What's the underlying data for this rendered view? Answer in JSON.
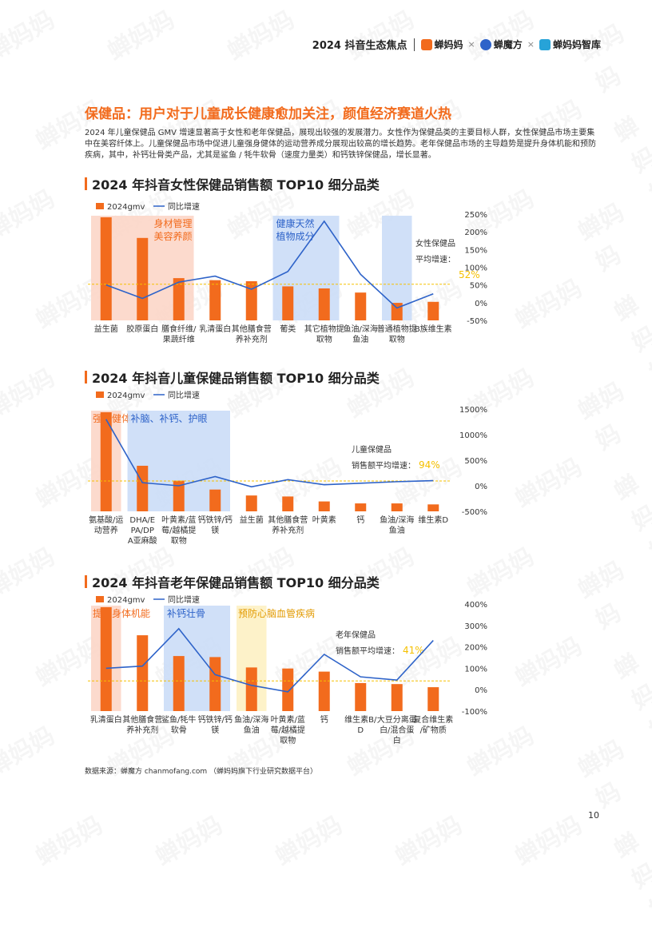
{
  "header": {
    "report_title": "2024 抖音生态焦点",
    "brand1": "蝉妈妈",
    "brand2": "蝉魔方",
    "brand3": "蝉妈妈智库",
    "times": "×"
  },
  "section_title": "保健品：用户对于儿童成长健康愈加关注，颜值经济赛道火热",
  "intro": "2024 年儿童保健品 GMV 增速显著高于女性和老年保健品，展现出较强的发展潜力。女性作为保健品类的主要目标人群，女性保健品市场主要集中在美容纤体上。儿童保健品市场中促进儿童强身健体的运动营养成分展现出较高的增长趋势。老年保健品市场的主导趋势是提升身体机能和预防疾病，其中，补钙壮骨类产品，尤其是鲨鱼 / 牦牛软骨（速度力量类）和钙铁锌保健品，增长显著。",
  "watermark": "蝉妈妈",
  "source": "数据来源：蝉魔方 chanmofang.com （蝉妈妈旗下行业研究数据平台）",
  "page_number": "10",
  "colors": {
    "bar": "#f26b1d",
    "line": "#2e63c9",
    "accent": "#f26b1d",
    "avg": "#f5c000"
  },
  "chart_data": [
    {
      "type": "bar",
      "title": "2024 年抖音女性保健品销售额 TOP10 细分品类",
      "legend": [
        "2024gmv",
        "同比增速"
      ],
      "categories": [
        "益生菌",
        "胶原蛋白",
        "膳食纤维/果蔬纤维",
        "乳清蛋白",
        "其他膳食营养补充剂",
        "葡类",
        "其它植物提取物",
        "鱼油/深海鱼油",
        "普通植物提取物",
        "B族维生素"
      ],
      "series": [
        {
          "name": "2024gmv",
          "values": [
            100,
            80,
            41,
            39,
            38,
            33,
            31,
            27,
            17,
            18
          ]
        },
        {
          "name": "同比增速",
          "values": [
            50,
            12,
            58,
            75,
            38,
            88,
            230,
            80,
            -15,
            25
          ]
        }
      ],
      "gmv_max": 100,
      "y2ticks": [
        "250%",
        "200%",
        "150%",
        "100%",
        "50%",
        "0%",
        "-50%"
      ],
      "y2lim": [
        -50,
        250
      ],
      "avg_value": 52,
      "avg_label": "女性保健品平均增速：",
      "avg_label_lines": [
        "女性保健品",
        "平均增速："
      ],
      "avg_text": "52%",
      "annotations": [
        {
          "text": [
            "身材管理",
            "美容养颜"
          ],
          "range": [
            0,
            2
          ],
          "color": "red"
        },
        {
          "text": [
            "健康天然",
            "植物成分"
          ],
          "range": [
            5,
            6
          ],
          "color": "blue"
        },
        {
          "text": [],
          "range": [
            8,
            8
          ],
          "color": "blue"
        }
      ]
    },
    {
      "type": "bar",
      "title": "2024 年抖音儿童保健品销售额 TOP10 细分品类",
      "legend": [
        "2024gmv",
        "同比增速"
      ],
      "categories": [
        "氨基酸/运动营养",
        "DHA/EPA/DPA亚麻酸",
        "叶黄素/蓝莓/越橘提取物",
        "钙铁锌/钙镁",
        "益生菌",
        "其他膳食营养补充剂",
        "叶黄素",
        "钙",
        "鱼油/深海鱼油",
        "维生素D"
      ],
      "series": [
        {
          "name": "2024gmv",
          "values": [
            100,
            46,
            31,
            22,
            16,
            15,
            10,
            8,
            8,
            7
          ]
        },
        {
          "name": "同比增速",
          "values": [
            1300,
            60,
            0,
            180,
            -20,
            120,
            20,
            50,
            80,
            100
          ]
        }
      ],
      "gmv_max": 100,
      "y2ticks": [
        "1500%",
        "1000%",
        "500%",
        "0%",
        "-500%"
      ],
      "y2lim": [
        -500,
        1500
      ],
      "avg_value": 94,
      "avg_label": "儿童保健品销售额平均增速：",
      "avg_label_lines": [
        "儿童保健品",
        "销售额平均增速："
      ],
      "avg_text": "94%",
      "annotations": [
        {
          "text": [
            "强身健体"
          ],
          "range": [
            0,
            0
          ],
          "color": "red"
        },
        {
          "text": [
            "补脑、补钙、护眼"
          ],
          "range": [
            1,
            3
          ],
          "color": "blue"
        }
      ]
    },
    {
      "type": "bar",
      "title": "2024 年抖音老年保健品销售额 TOP10 细分品类",
      "legend": [
        "2024gmv",
        "同比增速"
      ],
      "categories": [
        "乳清蛋白",
        "其他膳食营养补充剂",
        "鲨鱼/牦牛软骨",
        "钙铁锌/钙镁",
        "鱼油/深海鱼油",
        "叶黄素/蓝莓/越橘提取物",
        "钙",
        "维生素B/D",
        "大豆分离蛋白/混合蛋白",
        "复合维生素/矿物质"
      ],
      "series": [
        {
          "name": "2024gmv",
          "values": [
            100,
            73,
            53,
            52,
            42,
            41,
            38,
            27,
            26,
            23
          ]
        },
        {
          "name": "同比增速",
          "values": [
            100,
            110,
            285,
            70,
            20,
            -10,
            165,
            60,
            45,
            230
          ]
        }
      ],
      "gmv_max": 100,
      "y2ticks": [
        "400%",
        "300%",
        "200%",
        "100%",
        "0%",
        "-100%"
      ],
      "y2lim": [
        -100,
        400
      ],
      "avg_value": 41,
      "avg_label": "老年保健品销售额平均增速：",
      "avg_label_lines": [
        "老年保健品",
        "销售额平均增速："
      ],
      "avg_text": "41%",
      "annotations": [
        {
          "text": [
            "提高身体机能"
          ],
          "range": [
            0,
            0
          ],
          "color": "red"
        },
        {
          "text": [
            "补钙壮骨"
          ],
          "range": [
            2,
            3
          ],
          "color": "blue"
        },
        {
          "text": [
            "预防心脑血管疾病"
          ],
          "range": [
            4,
            4
          ],
          "color": "yellow"
        }
      ]
    }
  ]
}
